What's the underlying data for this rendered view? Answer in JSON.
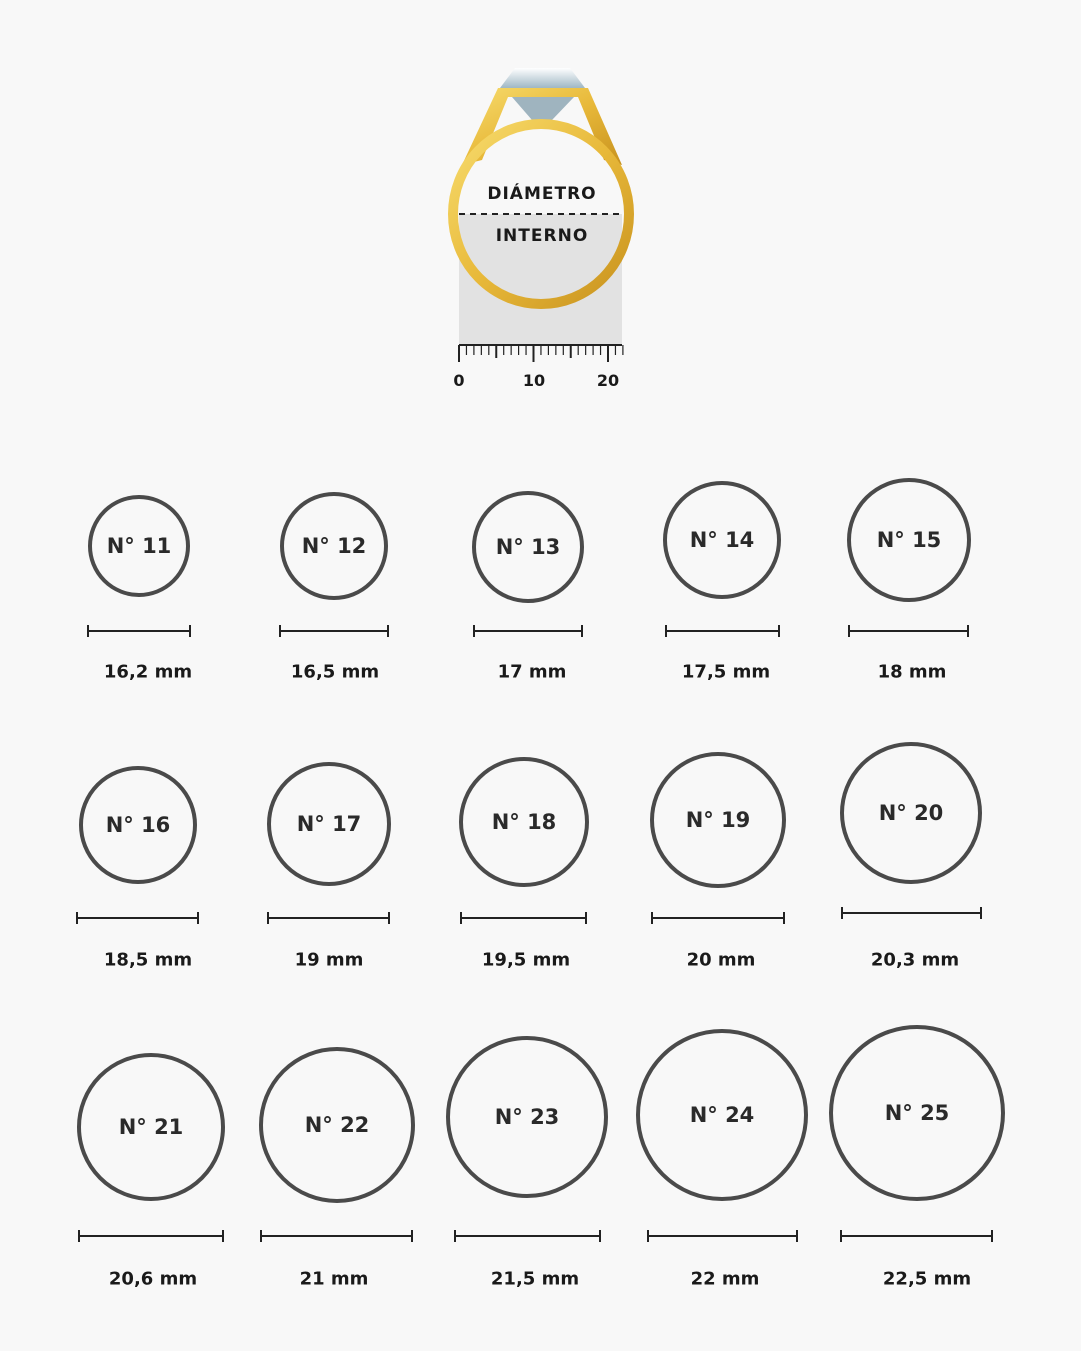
{
  "ring_diagram": {
    "label_top": "DIÁMETRO",
    "label_bottom": "INTERNO",
    "ruler_ticks": [
      "0",
      "10",
      "20"
    ],
    "gold_color": "#e8b93a",
    "gem_color": "#b9ccd6"
  },
  "sizes": [
    {
      "number": "N° 11",
      "diameter": "16,2 mm"
    },
    {
      "number": "N° 12",
      "diameter": "16,5 mm"
    },
    {
      "number": "N° 13",
      "diameter": "17 mm"
    },
    {
      "number": "N° 14",
      "diameter": "17,5 mm"
    },
    {
      "number": "N° 15",
      "diameter": "18 mm"
    },
    {
      "number": "N° 16",
      "diameter": "18,5 mm"
    },
    {
      "number": "N° 17",
      "diameter": "19 mm"
    },
    {
      "number": "N° 18",
      "diameter": "19,5 mm"
    },
    {
      "number": "N° 19",
      "diameter": "20 mm"
    },
    {
      "number": "N° 20",
      "diameter": "20,3 mm"
    },
    {
      "number": "N° 21",
      "diameter": "20,6 mm"
    },
    {
      "number": "N° 22",
      "diameter": "21 mm"
    },
    {
      "number": "N° 23",
      "diameter": "21,5 mm"
    },
    {
      "number": "N° 24",
      "diameter": "22 mm"
    },
    {
      "number": "N° 25",
      "diameter": "22,5 mm"
    }
  ],
  "colors": {
    "circle_stroke": "#4a4a4a",
    "scale_bar": "#222222",
    "background": "#f8f8f8"
  }
}
